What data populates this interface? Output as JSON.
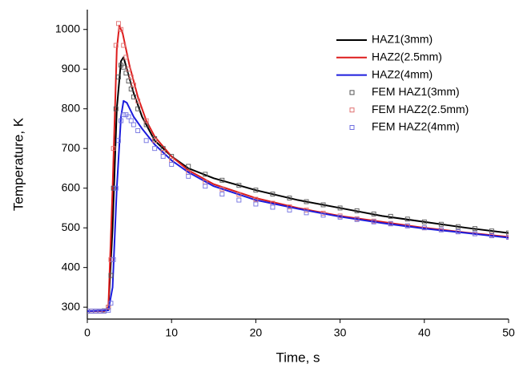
{
  "chart_data": {
    "type": "line",
    "xlabel": "Time, s",
    "ylabel": "Temperature, K",
    "xlim": [
      0,
      50
    ],
    "xticks": [
      0,
      10,
      20,
      30,
      40,
      50
    ],
    "ylim": [
      270,
      1050
    ],
    "yticks": [
      300,
      400,
      500,
      600,
      700,
      800,
      900,
      1000
    ],
    "legend": "upper right",
    "series": [
      {
        "name": "HAZ1(3mm)",
        "color": "#000000",
        "mode": "line",
        "x": [
          0,
          2,
          2.5,
          3,
          3.5,
          4,
          4.3,
          4.7,
          5.5,
          6.5,
          8,
          10,
          12,
          15,
          20,
          25,
          30,
          35,
          40,
          45,
          50
        ],
        "values": [
          290,
          290,
          295,
          500,
          800,
          920,
          930,
          900,
          840,
          780,
          720,
          680,
          650,
          625,
          595,
          570,
          550,
          530,
          515,
          500,
          487
        ]
      },
      {
        "name": "HAZ2(2.5mm)",
        "color": "#dd1c1c",
        "mode": "line",
        "x": [
          0,
          2,
          2.5,
          3,
          3.5,
          3.8,
          4.2,
          5,
          6,
          7,
          8,
          10,
          12,
          15,
          20,
          25,
          30,
          35,
          40,
          45,
          50
        ],
        "values": [
          290,
          290,
          300,
          600,
          950,
          1010,
          990,
          910,
          830,
          770,
          730,
          680,
          645,
          610,
          575,
          550,
          530,
          515,
          500,
          488,
          477
        ]
      },
      {
        "name": "HAZ2(4mm)",
        "color": "#1c1cdd",
        "mode": "line",
        "x": [
          0,
          2.5,
          3,
          3.5,
          4,
          4.3,
          4.7,
          5.5,
          6.5,
          8,
          10,
          12,
          15,
          20,
          25,
          30,
          35,
          40,
          45,
          50
        ],
        "values": [
          290,
          292,
          350,
          600,
          780,
          820,
          815,
          780,
          750,
          710,
          670,
          640,
          605,
          570,
          548,
          528,
          512,
          498,
          487,
          475
        ]
      },
      {
        "name": "FEM HAZ1(3mm)",
        "color": "#555555",
        "mode": "markers",
        "x": [
          0,
          0.5,
          1,
          1.5,
          2,
          2.5,
          2.8,
          3.1,
          3.4,
          3.7,
          4,
          4.3,
          4.6,
          4.9,
          5.2,
          5.5,
          6,
          7,
          8,
          9,
          10,
          12,
          14,
          16,
          18,
          20,
          22,
          24,
          26,
          28,
          30,
          32,
          34,
          36,
          38,
          40,
          42,
          44,
          46,
          48,
          50
        ],
        "values": [
          290,
          290,
          290,
          290,
          291,
          300,
          380,
          600,
          800,
          880,
          910,
          905,
          890,
          870,
          850,
          830,
          800,
          760,
          725,
          700,
          680,
          655,
          635,
          620,
          607,
          595,
          585,
          575,
          566,
          558,
          550,
          543,
          535,
          529,
          522,
          515,
          509,
          503,
          498,
          492,
          487
        ]
      },
      {
        "name": "FEM HAZ2(2.5mm)",
        "color": "#e07070",
        "mode": "markers",
        "x": [
          0,
          0.5,
          1,
          1.5,
          2,
          2.5,
          2.8,
          3.1,
          3.4,
          3.7,
          4,
          4.3,
          4.6,
          4.9,
          5.2,
          5.5,
          6,
          7,
          8,
          9,
          10,
          12,
          14,
          16,
          18,
          20,
          22,
          24,
          26,
          28,
          30,
          32,
          34,
          36,
          38,
          40,
          42,
          44,
          46,
          48,
          50
        ],
        "values": [
          290,
          290,
          290,
          290,
          290,
          300,
          420,
          700,
          960,
          1015,
          1000,
          960,
          930,
          900,
          880,
          860,
          820,
          770,
          720,
          690,
          670,
          640,
          615,
          598,
          584,
          572,
          562,
          553,
          545,
          537,
          530,
          523,
          517,
          511,
          505,
          500,
          495,
          490,
          485,
          481,
          477
        ]
      },
      {
        "name": "FEM HAZ2(4mm)",
        "color": "#7070e0",
        "mode": "markers",
        "x": [
          0,
          0.5,
          1,
          1.5,
          2,
          2.5,
          2.8,
          3.1,
          3.4,
          3.7,
          4,
          4.3,
          4.6,
          4.9,
          5.2,
          5.5,
          6,
          7,
          8,
          9,
          10,
          12,
          14,
          16,
          18,
          20,
          22,
          24,
          26,
          28,
          30,
          32,
          34,
          36,
          38,
          40,
          42,
          44,
          46,
          48,
          50
        ],
        "values": [
          290,
          290,
          290,
          290,
          290,
          292,
          310,
          420,
          600,
          720,
          770,
          785,
          785,
          780,
          770,
          760,
          745,
          720,
          700,
          680,
          660,
          630,
          605,
          585,
          570,
          560,
          552,
          545,
          538,
          532,
          527,
          521,
          515,
          510,
          505,
          500,
          495,
          490,
          485,
          480,
          476
        ]
      }
    ]
  }
}
